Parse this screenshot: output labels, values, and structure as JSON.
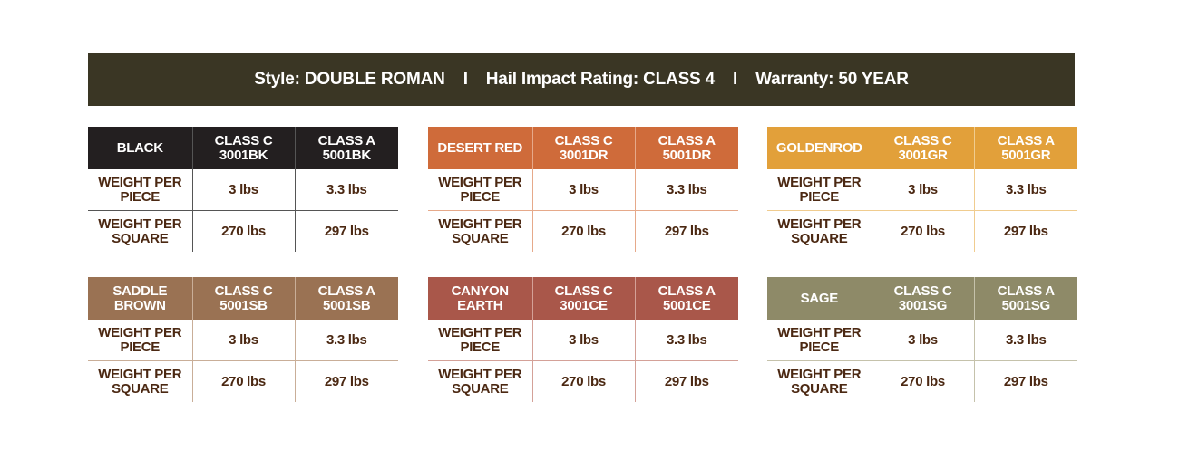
{
  "banner": {
    "style": "Style: DOUBLE ROMAN",
    "separator": "I",
    "hail": "Hail Impact Rating:  CLASS 4",
    "warranty": "Warranty: 50 YEAR"
  },
  "row_labels": [
    "WEIGHT PER PIECE",
    "WEIGHT PER SQUARE"
  ],
  "tables": [
    {
      "color_name": "BLACK",
      "color": "#231f20",
      "line": "#555555",
      "class_c": "CLASS C",
      "code_c": "3001BK",
      "class_a": "CLASS A",
      "code_a": "5001BK",
      "piece_c": "3 lbs",
      "piece_a": "3.3 lbs",
      "square_c": "270 lbs",
      "square_a": "297 lbs"
    },
    {
      "color_name": "DESERT RED",
      "color": "#cf6b3a",
      "line": "#e6a98a",
      "class_c": "CLASS C",
      "code_c": "3001DR",
      "class_a": "CLASS A",
      "code_a": "5001DR",
      "piece_c": "3 lbs",
      "piece_a": "3.3 lbs",
      "square_c": "270 lbs",
      "square_a": "297 lbs"
    },
    {
      "color_name": "GOLDENROD",
      "color": "#e2a03a",
      "line": "#f0cc8f",
      "class_c": "CLASS C",
      "code_c": "3001GR",
      "class_a": "CLASS A",
      "code_a": "5001GR",
      "piece_c": "3 lbs",
      "piece_a": "3.3 lbs",
      "square_c": "270 lbs",
      "square_a": "297 lbs"
    },
    {
      "color_name": "SADDLE BROWN",
      "color": "#9a7253",
      "line": "#c9ae98",
      "class_c": "CLASS C",
      "code_c": "5001SB",
      "class_a": "CLASS A",
      "code_a": "5001SB",
      "piece_c": "3 lbs",
      "piece_a": "3.3 lbs",
      "square_c": "270 lbs",
      "square_a": "297 lbs"
    },
    {
      "color_name": "CANYON EARTH",
      "color": "#a9574a",
      "line": "#d4a198",
      "class_c": "CLASS C",
      "code_c": "3001CE",
      "class_a": "CLASS A",
      "code_a": "5001CE",
      "piece_c": "3 lbs",
      "piece_a": "3.3 lbs",
      "square_c": "270 lbs",
      "square_a": "297 lbs"
    },
    {
      "color_name": "SAGE",
      "color": "#8e8a68",
      "line": "#c5c2ab",
      "class_c": "CLASS C",
      "code_c": "3001SG",
      "class_a": "CLASS A",
      "code_a": "5001SG",
      "piece_c": "3 lbs",
      "piece_a": "3.3 lbs",
      "square_c": "270 lbs",
      "square_a": "297 lbs"
    }
  ]
}
